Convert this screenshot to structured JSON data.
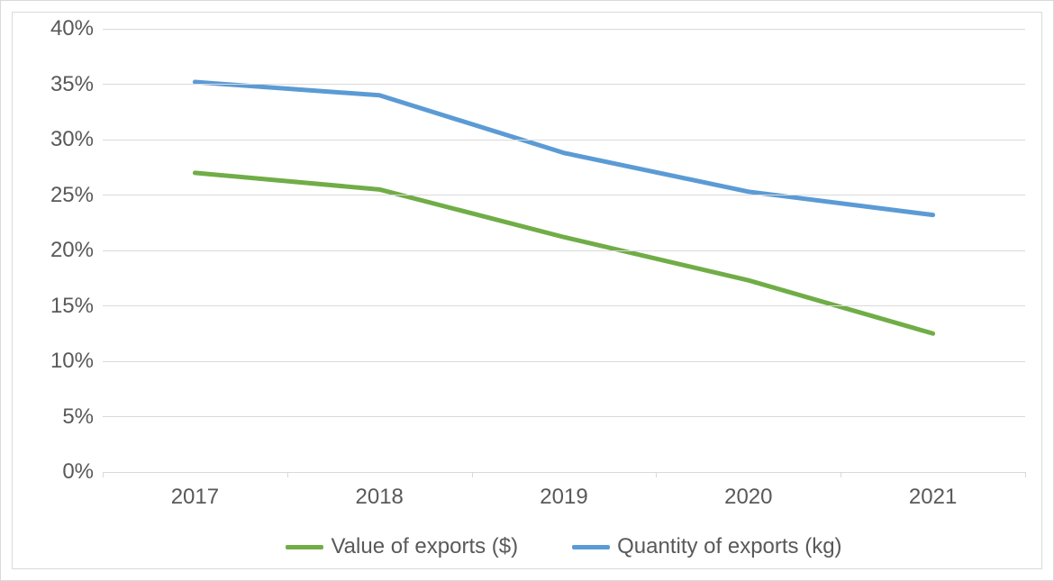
{
  "exports_chart": {
    "type": "line",
    "background_color": "#ffffff",
    "border_color": "#d9d9d9",
    "grid_color": "#d9d9d9",
    "text_color": "#595959",
    "axis_fontsize": 24,
    "legend_fontsize": 24,
    "line_width": 5,
    "ylim": [
      0,
      40
    ],
    "ytick_step": 5,
    "y_ticks": [
      0,
      5,
      10,
      15,
      20,
      25,
      30,
      35,
      40
    ],
    "y_tick_labels": [
      "0%",
      "5%",
      "10%",
      "15%",
      "20%",
      "25%",
      "30%",
      "35%",
      "40%"
    ],
    "x_categories": [
      "2017",
      "2018",
      "2019",
      "2020",
      "2021"
    ],
    "series": [
      {
        "name": "Value of exports ($)",
        "color": "#70ad47",
        "values": [
          27.0,
          25.5,
          21.2,
          17.3,
          12.5
        ]
      },
      {
        "name": "Quantity of exports (kg)",
        "color": "#5b9bd5",
        "values": [
          35.2,
          34.0,
          28.8,
          25.3,
          23.2
        ]
      }
    ]
  }
}
